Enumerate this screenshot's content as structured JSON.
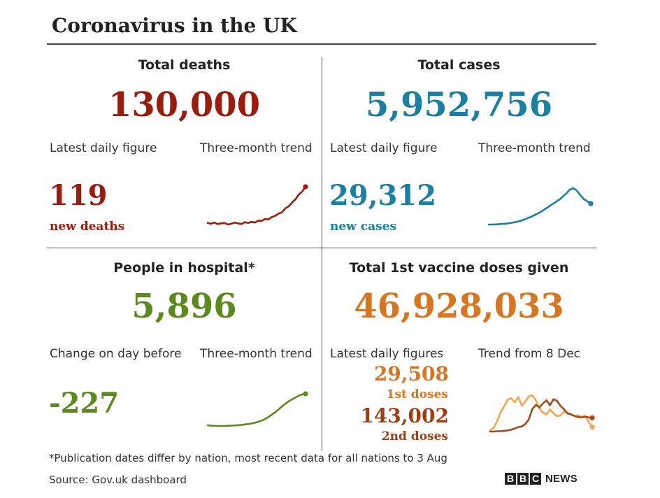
{
  "title": "Coronavirus in the UK",
  "colors": {
    "deaths": "#9b1c0c",
    "cases": "#1a7fa0",
    "hospital": "#5a8a1c",
    "vaccine": "#d9751e",
    "dose1": "#d9751e",
    "dose2": "#a03e12",
    "trend_dose1": "#f5a54a",
    "trend_dose2": "#a04a1c"
  },
  "deaths": {
    "heading": "Total deaths",
    "total": "130,000",
    "daily_label": "Latest daily figure",
    "trend_label": "Three-month trend",
    "daily_value": "119",
    "daily_unit": "new deaths"
  },
  "cases": {
    "heading": "Total cases",
    "total": "5,952,756",
    "daily_label": "Latest daily figure",
    "trend_label": "Three-month trend",
    "daily_value": "29,312",
    "daily_unit": "new cases"
  },
  "hospital": {
    "heading": "People in hospital*",
    "total": "5,896",
    "daily_label": "Change on day before",
    "trend_label": "Three-month trend",
    "daily_value": "-227"
  },
  "vaccine": {
    "heading": "Total 1st vaccine doses given",
    "total": "46,928,033",
    "daily_label": "Latest daily figures",
    "trend_label": "Trend from 8 Dec",
    "dose1_value": "29,508",
    "dose1_label": "1st doses",
    "dose2_value": "143,002",
    "dose2_label": "2nd doses"
  },
  "footnote": "*Publication dates differ by nation, most recent data for all nations to 3 Aug",
  "source": "Source: Gov.uk dashboard",
  "logo": {
    "b1": "B",
    "b2": "B",
    "c": "C",
    "news": "NEWS"
  },
  "chart_data": [
    {
      "type": "line",
      "name": "deaths-three-month-trend",
      "x": [
        0,
        1,
        2,
        3,
        4,
        5,
        6,
        7,
        8,
        9,
        10,
        11,
        12,
        13,
        14,
        15,
        16,
        17,
        18,
        19,
        20,
        21,
        22,
        23,
        24,
        25,
        26,
        27,
        28,
        29
      ],
      "series": [
        {
          "values": [
            18,
            16,
            19,
            15,
            17,
            18,
            14,
            16,
            19,
            17,
            15,
            20,
            18,
            21,
            19,
            24,
            23,
            28,
            27,
            33,
            36,
            42,
            45,
            55,
            60,
            70,
            78,
            90,
            98,
            110
          ]
        }
      ],
      "marker_last": true
    },
    {
      "type": "line",
      "name": "cases-three-month-trend",
      "x": [
        0,
        1,
        2,
        3,
        4,
        5,
        6,
        7,
        8,
        9,
        10,
        11,
        12,
        13,
        14,
        15,
        16,
        17,
        18,
        19,
        20,
        21,
        22,
        23,
        24,
        25,
        26,
        27,
        28,
        29
      ],
      "series": [
        {
          "values": [
            2,
            2,
            2.2,
            2.5,
            2.8,
            3.2,
            3.8,
            4.6,
            5.6,
            6.8,
            8.2,
            10,
            12,
            14,
            16.5,
            19,
            22,
            25,
            28,
            31,
            34,
            38,
            42,
            47,
            49,
            46,
            40,
            35,
            32,
            29
          ]
        }
      ],
      "marker_last": true
    },
    {
      "type": "line",
      "name": "hospital-three-month-trend",
      "x": [
        0,
        1,
        2,
        3,
        4,
        5,
        6,
        7,
        8,
        9,
        10,
        11,
        12,
        13,
        14,
        15,
        16,
        17,
        18,
        19,
        20,
        21,
        22,
        23,
        24,
        25,
        26,
        27,
        28,
        29
      ],
      "series": [
        {
          "values": [
            1.0,
            0.95,
            0.92,
            0.9,
            0.9,
            0.9,
            0.92,
            0.95,
            0.98,
            1.02,
            1.07,
            1.13,
            1.2,
            1.3,
            1.4,
            1.55,
            1.75,
            2.0,
            2.3,
            2.7,
            3.1,
            3.5,
            4.0,
            4.4,
            4.8,
            5.1,
            5.4,
            5.7,
            5.9,
            6.0
          ]
        }
      ],
      "marker_last": true
    },
    {
      "type": "line",
      "name": "vaccine-trend-from-8-dec",
      "x": [
        0,
        1,
        2,
        3,
        4,
        5,
        6,
        7,
        8,
        9,
        10,
        11,
        12,
        13,
        14,
        15,
        16,
        17,
        18,
        19,
        20,
        21,
        22,
        23,
        24,
        25,
        26,
        27,
        28,
        29
      ],
      "series": [
        {
          "values": [
            0.5,
            1.2,
            3,
            5.5,
            7,
            8.8,
            9.2,
            8.1,
            9.5,
            7.2,
            8.3,
            9.7,
            10,
            8.6,
            6.4,
            5.3,
            4.8,
            6.2,
            5.1,
            4.4,
            4.5,
            5.6,
            5.2,
            4.9,
            4.3,
            4.6,
            4.1,
            4.4,
            2.8,
            1.4
          ]
        },
        {
          "values": [
            0.2,
            0.2,
            0.3,
            0.3,
            0.4,
            0.5,
            0.7,
            1.0,
            1.4,
            1.6,
            2.2,
            3.5,
            6.3,
            7.4,
            6.7,
            7.8,
            8.6,
            7.3,
            8.9,
            8.5,
            7.1,
            6.2,
            5.1,
            4.8,
            4.4,
            4.1,
            4.0,
            4.2,
            4.0,
            3.9
          ]
        }
      ],
      "marker_last": true
    }
  ]
}
